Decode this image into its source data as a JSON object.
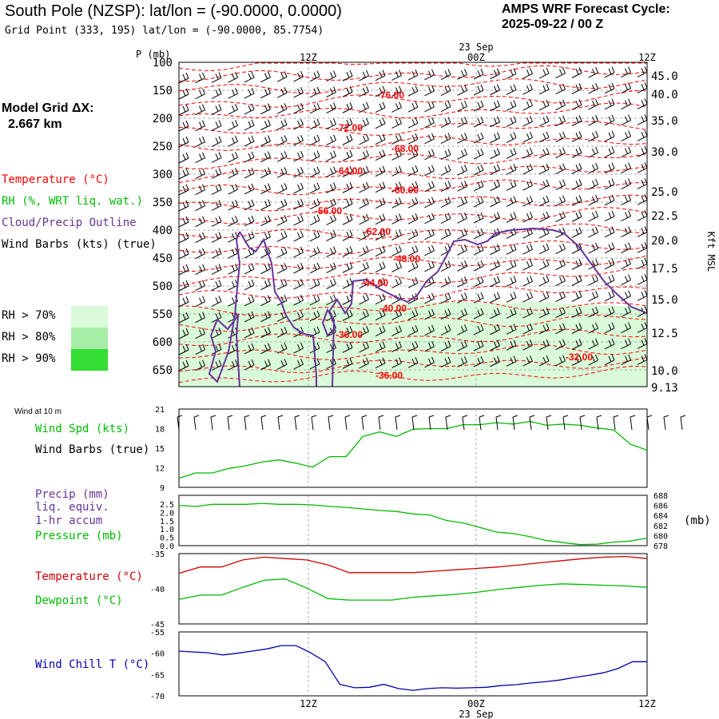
{
  "header": {
    "station_title": "South Pole (NZSP):  lat/lon = (-90.0000, 0.0000)",
    "grid_point": "Grid Point (333, 195) lat/lon = (-90.0000, 85.7754)",
    "cycle_line1": "AMPS WRF Forecast Cycle:",
    "cycle_line2": "2025-09-22 / 00  Z",
    "model_grid_label": "Model Grid ΔX:",
    "model_grid_value": "2.667 km"
  },
  "legend": {
    "temperature": "Temperature (°C)",
    "rh": "RH (%, WRT liq. wat.)",
    "cloud": "Cloud/Precip Outline",
    "wind": "Wind Barbs (kts) (true)",
    "rh70": "RH > 70%",
    "rh80": "RH > 80%",
    "rh90": "RH > 90%"
  },
  "colors": {
    "temperature": "#ff0000",
    "rh": "#00bb00",
    "cloud": "#663399",
    "pressure_line": "#00bb00",
    "windchill": "#0000cc",
    "rh70": "#d9fbd9",
    "rh80": "#a6eea6",
    "rh90": "#33dd33"
  },
  "time_axis": {
    "labels": [
      "12Z",
      "00Z",
      "12Z"
    ],
    "date_label": "23 Sep"
  },
  "chart_data": [
    {
      "type": "heatmap",
      "id": "sounding-cross-section",
      "ylabel": "P (mb)",
      "y_right_label": "Kft MSL",
      "ylim": [
        100,
        680
      ],
      "pressure_ticks": [
        "100",
        "150",
        "200",
        "250",
        "300",
        "350",
        "400",
        "450",
        "500",
        "550",
        "600",
        "650"
      ],
      "height_ticks": [
        "45.0",
        "40.0",
        "35.0",
        "30.0",
        "25.0",
        "22.5",
        "20.0",
        "17.5",
        "15.0",
        "12.5",
        "10.0",
        "9.13"
      ],
      "temperature_labels": [
        "-76.00",
        "-72.00",
        "-68.00",
        "-64.00",
        "-60.00",
        "-56.00",
        "-52.00",
        "-48.00",
        "-44.00",
        "-40.00",
        "-36.00",
        "-32.00",
        "-36.00"
      ],
      "rh_top_pressure_mb": [
        540,
        537,
        535,
        532,
        530,
        532,
        530,
        528,
        530,
        528,
        530,
        532,
        530,
        528,
        530,
        528,
        530,
        532,
        530,
        528,
        530,
        532,
        534,
        535,
        536,
        537
      ],
      "grid": true
    },
    {
      "type": "line",
      "id": "wind-speed-10m",
      "title": "Wind at 10 m",
      "series": [
        {
          "name": "Wind Spd (kts)",
          "values": [
            10.4,
            11.2,
            11.2,
            11.9,
            12.3,
            12.9,
            13.2,
            12.7,
            12.1,
            13.7,
            13.7,
            16.8,
            17.5,
            16.8,
            17.9,
            18.0,
            18.0,
            18.6,
            18.6,
            18.9,
            18.7,
            19.1,
            18.5,
            18.7,
            18.5,
            18.1,
            17.8,
            15.6,
            14.7
          ]
        }
      ],
      "subtitle": "Wind Barbs (true)",
      "y_ticks": [
        "9",
        "12",
        "15",
        "18",
        "21"
      ],
      "ylim": [
        9,
        21
      ]
    },
    {
      "type": "line",
      "id": "precip-pressure",
      "series": [
        {
          "name": "Pressure (mb)",
          "values": [
            686.0,
            685.8,
            686.2,
            686.2,
            686.2,
            686.4,
            686.2,
            686.2,
            686.1,
            685.8,
            685.6,
            685.3,
            685.0,
            684.8,
            684.3,
            684.1,
            683.0,
            682.5,
            681.6,
            680.7,
            680.4,
            679.8,
            679.0,
            678.6,
            678.2,
            678.3,
            678.7,
            678.9,
            679.5
          ]
        }
      ],
      "precip_labels": [
        "Precip (mm)",
        "liq. equiv.",
        "1-hr accum"
      ],
      "y_ticks_left": [
        "0.0",
        "0.5",
        "1.0",
        "1.5",
        "2.0",
        "2.5"
      ],
      "y_ticks_right": [
        "678",
        "680",
        "682",
        "684",
        "686",
        "688"
      ],
      "unit_right": "(mb)",
      "ylim": [
        678,
        688
      ]
    },
    {
      "type": "line",
      "id": "temperature-dewpoint",
      "series": [
        {
          "name": "Temperature (°C)",
          "values": [
            -37.8,
            -36.9,
            -36.9,
            -35.9,
            -35.5,
            -35.7,
            -35.9,
            -36.6,
            -37.7,
            -37.7,
            -37.7,
            -37.7,
            -37.5,
            -37.3,
            -37.1,
            -36.9,
            -36.6,
            -36.3,
            -36.0,
            -35.7,
            -35.5,
            -35.4,
            -35.7
          ]
        },
        {
          "name": "Dewpoint (°C)",
          "values": [
            -41.5,
            -40.9,
            -40.9,
            -39.8,
            -38.8,
            -38.6,
            -39.9,
            -41.4,
            -41.6,
            -41.6,
            -41.6,
            -41.2,
            -41.0,
            -40.8,
            -40.5,
            -40.1,
            -39.8,
            -39.5,
            -39.3,
            -39.4,
            -39.5,
            -39.6,
            -39.8
          ]
        }
      ],
      "y_ticks": [
        "-45",
        "-40",
        "-35"
      ],
      "ylim": [
        -45,
        -35
      ]
    },
    {
      "type": "line",
      "id": "wind-chill",
      "series": [
        {
          "name": "Wind Chill T (°C)",
          "values": [
            -59.5,
            -59.7,
            -59.9,
            -60.4,
            -60.0,
            -59.5,
            -59.0,
            -58.2,
            -58.2,
            -59.9,
            -62.0,
            -67.3,
            -68.1,
            -68.0,
            -67.3,
            -68.3,
            -68.7,
            -68.3,
            -68.1,
            -68.2,
            -68.1,
            -68.0,
            -67.6,
            -67.4,
            -67.0,
            -66.7,
            -66.3,
            -65.7,
            -65.2,
            -64.6,
            -63.6,
            -62.0,
            -62.0
          ]
        }
      ],
      "y_ticks": [
        "-70",
        "-65",
        "-60",
        "-55"
      ],
      "ylim": [
        -70,
        -55
      ]
    }
  ]
}
